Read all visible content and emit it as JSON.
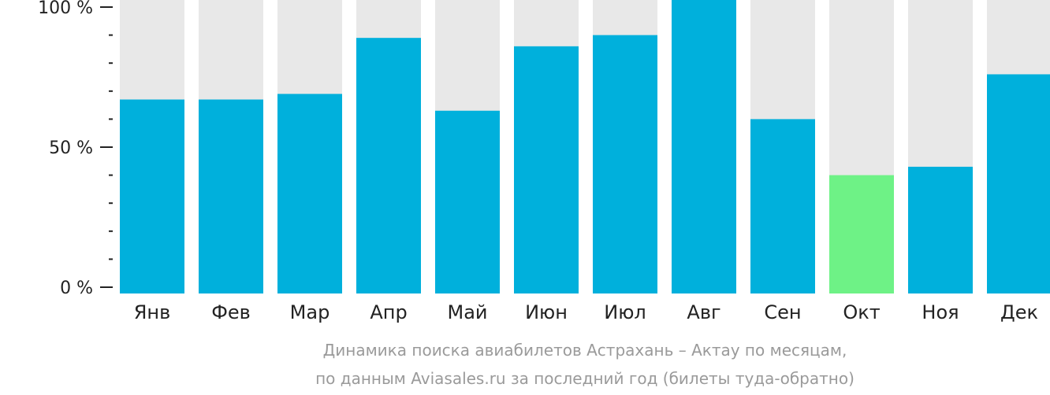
{
  "chart_data": {
    "type": "bar",
    "categories": [
      "Янв",
      "Фев",
      "Мар",
      "Апр",
      "Май",
      "Июн",
      "Июл",
      "Авг",
      "Сен",
      "Окт",
      "Ноя",
      "Дек"
    ],
    "values": [
      67,
      67,
      69,
      89,
      63,
      86,
      90,
      105,
      60,
      40,
      43,
      76
    ],
    "highlight_index": 9,
    "ylim": [
      0,
      100
    ],
    "yticks": [
      {
        "value": 0,
        "label": "0 %"
      },
      {
        "value": 50,
        "label": "50 %"
      },
      {
        "value": 100,
        "label": "100 %"
      }
    ],
    "minor_ticks": [
      10,
      20,
      30,
      40,
      60,
      70,
      80,
      90
    ],
    "caption_lines": [
      "Динамика поиска авиабилетов Астрахань – Актау по месяцам,",
      "по данным Aviasales.ru за последний год (билеты туда-обратно)"
    ],
    "colors": {
      "bar": "#00b0dc",
      "highlight": "#6ef286",
      "background_bar": "#e8e8e8",
      "axis": "#222222",
      "caption": "#9a9a9a"
    }
  }
}
